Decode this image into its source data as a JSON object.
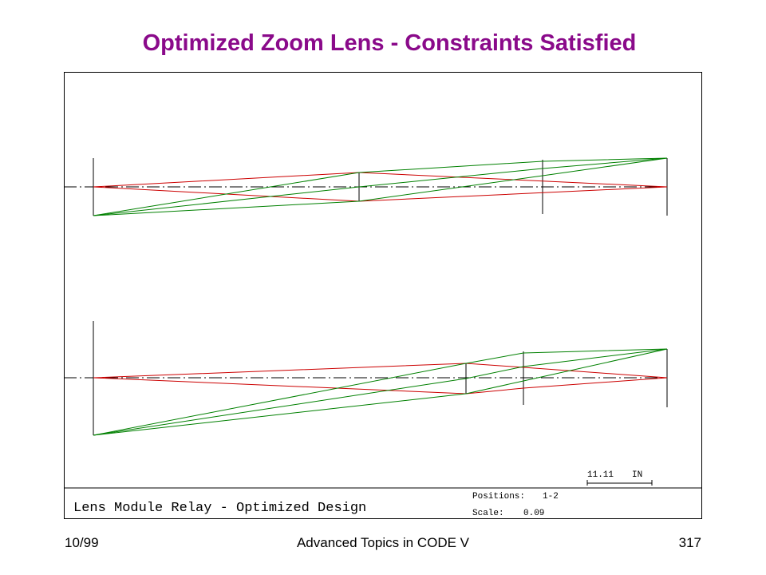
{
  "title": "Optimized Zoom Lens - Constraints Satisfied",
  "diagram": {
    "design_name": "Lens Module Relay - Optimized Design",
    "positions_label": "Positions:",
    "positions_value": "1-2",
    "scale_label": "Scale:",
    "scale_value": "0.09",
    "scale_bar_value": "11.11",
    "scale_bar_unit": "IN",
    "colors": {
      "axial_rays": "#cc0000",
      "field_rays": "#008000",
      "lines": "#000000"
    }
  },
  "footer": {
    "date": "10/99",
    "course": "Advanced Topics in CODE V",
    "page": "317"
  }
}
